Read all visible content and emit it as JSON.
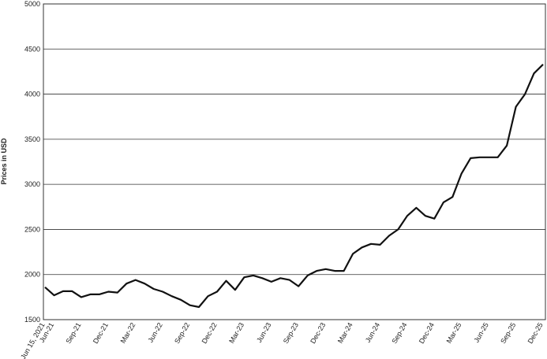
{
  "chart_data": {
    "type": "line",
    "y_label": "Prices in USD",
    "categories": [
      "Jun 15, 2021",
      "Jun-21",
      null,
      null,
      "Sep-21",
      null,
      null,
      "Dec-21",
      null,
      null,
      "Mar-22",
      null,
      null,
      "Jun-22",
      null,
      null,
      "Sep-22",
      null,
      null,
      "Dec-22",
      null,
      null,
      "Mar-23",
      null,
      null,
      "Jun-23",
      null,
      null,
      "Sep-23",
      null,
      null,
      "Dec-23",
      null,
      null,
      "Mar-24",
      null,
      null,
      "Jun-24",
      null,
      null,
      "Sep-24",
      null,
      null,
      "Dec-24",
      null,
      null,
      "Mar-25",
      null,
      null,
      "Jun-25",
      null,
      null,
      "Sep-25",
      null,
      null,
      "Dec-25"
    ],
    "values": [
      1860,
      1770,
      1815,
      1815,
      1750,
      1780,
      1780,
      1810,
      1800,
      1900,
      1940,
      1900,
      1840,
      1810,
      1760,
      1720,
      1660,
      1640,
      1760,
      1810,
      1930,
      1830,
      1970,
      1990,
      1960,
      1920,
      1960,
      1940,
      1870,
      1990,
      2040,
      2060,
      2040,
      2040,
      2230,
      2300,
      2340,
      2330,
      2430,
      2500,
      2650,
      2740,
      2650,
      2620,
      2800,
      2860,
      3120,
      3290,
      3300,
      3300,
      3300,
      3430,
      3860,
      4000,
      4230,
      4330
    ],
    "color": "#111111",
    "ylim": [
      1500,
      5000
    ],
    "yticks": [
      1500,
      2000,
      2500,
      3000,
      3500,
      4000,
      4500,
      5000
    ],
    "grid": true
  }
}
